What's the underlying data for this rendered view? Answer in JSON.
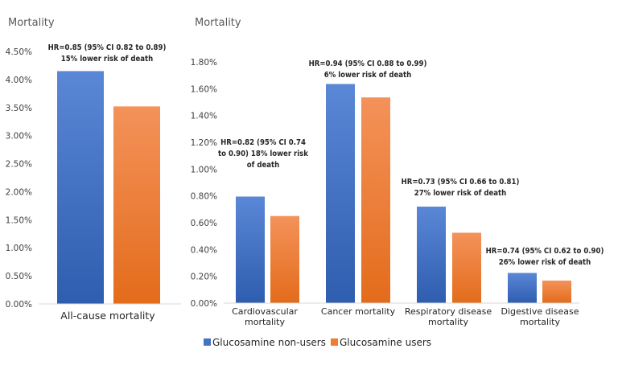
{
  "chart_data": [
    {
      "type": "bar",
      "ylabel": "Mortality",
      "ylim": [
        0,
        4.5
      ],
      "yticks": [
        "0.00%",
        "0.50%",
        "1.00%",
        "1.50%",
        "2.00%",
        "2.50%",
        "3.00%",
        "3.50%",
        "4.00%",
        "4.50%"
      ],
      "categories": [
        "All-cause  mortality"
      ],
      "series": [
        {
          "name": "Glucosamine  non-users",
          "values": [
            4.15
          ]
        },
        {
          "name": "Glucosamine users",
          "values": [
            3.52
          ]
        }
      ],
      "annotations": [
        [
          "HR=0.85 (95% CI 0.82 to 0.89)",
          "15% lower risk of death"
        ]
      ]
    },
    {
      "type": "bar",
      "ylabel": "Mortality",
      "ylim": [
        0,
        1.8
      ],
      "yticks": [
        "0.00%",
        "0.20%",
        "0.40%",
        "0.60%",
        "0.80%",
        "1.00%",
        "1.20%",
        "1.40%",
        "1.60%",
        "1.80%"
      ],
      "categories": [
        [
          "Cardiovascular",
          "mortality"
        ],
        [
          "Cancer mortality"
        ],
        [
          "Respiratory disease",
          "mortality"
        ],
        [
          "Digestive disease",
          "mortality"
        ]
      ],
      "series": [
        {
          "name": "Glucosamine  non-users",
          "values": [
            0.795,
            1.635,
            0.72,
            0.225
          ]
        },
        {
          "name": "Glucosamine users",
          "values": [
            0.65,
            1.535,
            0.525,
            0.168
          ]
        }
      ],
      "annotations": [
        [
          "HR=0.82 (95% CI 0.74",
          "to 0.90) 18% lower risk",
          "of death"
        ],
        [
          "HR=0.94 (95% CI 0.88 to 0.99)",
          "6% lower risk of death"
        ],
        [
          "HR=0.73 (95% CI 0.66 to 0.81)",
          "27% lower risk of death"
        ],
        [
          "HR=0.74 (95% CI 0.62 to 0.90)",
          "26% lower risk of death"
        ]
      ]
    }
  ],
  "legend": [
    {
      "label": "Glucosamine  non-users",
      "color": "#4472C4"
    },
    {
      "label": "Glucosamine users",
      "color": "#ED7D31"
    }
  ]
}
